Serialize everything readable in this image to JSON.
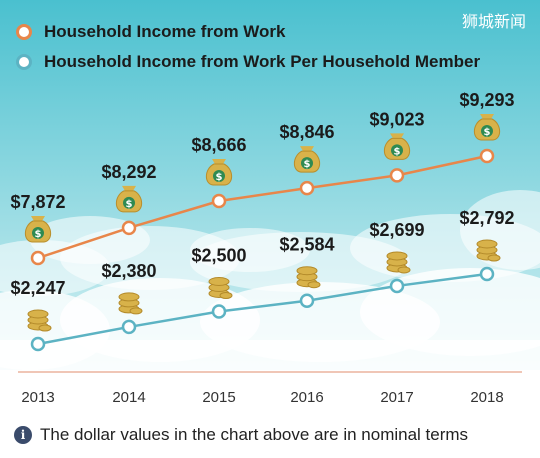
{
  "watermark": "狮城新闻",
  "footnote": {
    "icon": "info-icon",
    "text": "The dollar values in the chart above are in nominal terms"
  },
  "colors": {
    "sky_top": "#4ac0cf",
    "sky_bottom": "#d6f1f3",
    "cloud": "#ffffff",
    "work_series": "#e8864a",
    "member_series": "#5cb3c3",
    "money": "#d8b24a",
    "axis": "#e6a58a"
  },
  "chart_data": {
    "type": "line",
    "title": "",
    "xlabel": "",
    "ylabel": "",
    "categories": [
      "2013",
      "2014",
      "2015",
      "2016",
      "2017",
      "2018"
    ],
    "ylim": [
      1000,
      9800
    ],
    "grid": false,
    "legend_position": "top-left",
    "series": [
      {
        "name": "Household Income from Work",
        "values": [
          7872,
          8292,
          8666,
          8846,
          9023,
          9293
        ],
        "labels": [
          "$7,872",
          "$8,292",
          "$8,666",
          "$8,846",
          "$9,023",
          "$9,293"
        ],
        "marker_icon": "money-bag-icon"
      },
      {
        "name": "Household Income from Work Per Household Member",
        "values": [
          2247,
          2380,
          2500,
          2584,
          2699,
          2792
        ],
        "labels": [
          "$2,247",
          "$2,380",
          "$2,500",
          "$2,584",
          "$2,699",
          "$2,792"
        ],
        "marker_icon": "coin-stack-icon"
      }
    ]
  }
}
